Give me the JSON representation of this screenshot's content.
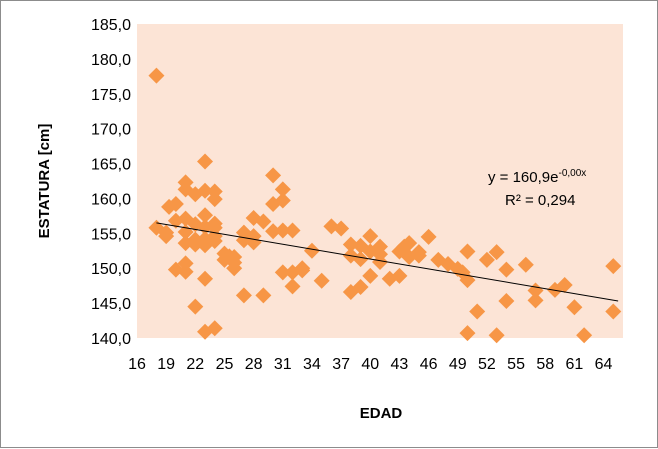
{
  "chart_data": {
    "type": "scatter",
    "xlabel": "EDAD",
    "ylabel": "ESTATURA [cm]",
    "xlim": [
      16,
      66
    ],
    "ylim": [
      140,
      185
    ],
    "x_ticks": [
      "16",
      "19",
      "22",
      "25",
      "28",
      "31",
      "34",
      "37",
      "40",
      "43",
      "46",
      "49",
      "52",
      "55",
      "58",
      "61",
      "64"
    ],
    "y_ticks": [
      "140,0",
      "145,0",
      "150,0",
      "155,0",
      "160,0",
      "165,0",
      "170,0",
      "175,0",
      "180,0",
      "185,0"
    ],
    "grid": false,
    "legend": "none",
    "plot_background": "#fce4d6",
    "marker_color": "#f79646",
    "trend_color": "#000000",
    "equation": {
      "prefix": "y = 160,9e",
      "exponent": "-0,00x"
    },
    "r_squared": "R² = 0,294",
    "trendline": {
      "x": [
        18,
        65.5
      ],
      "y": [
        156.5,
        145.3
      ]
    },
    "points": [
      [
        18,
        177.6
      ],
      [
        18,
        155.8
      ],
      [
        19,
        155.1
      ],
      [
        19,
        154.6
      ],
      [
        19.3,
        158.8
      ],
      [
        20,
        159.2
      ],
      [
        20,
        156.8
      ],
      [
        20,
        149.8
      ],
      [
        21,
        162.3
      ],
      [
        21,
        161.3
      ],
      [
        21,
        157.1
      ],
      [
        21,
        155.2
      ],
      [
        21,
        153.6
      ],
      [
        21,
        150.7
      ],
      [
        21,
        149.5
      ],
      [
        22,
        160.6
      ],
      [
        22,
        156.3
      ],
      [
        22,
        154.1
      ],
      [
        22,
        153.4
      ],
      [
        22,
        144.5
      ],
      [
        23,
        165.3
      ],
      [
        23,
        161.1
      ],
      [
        23,
        157.6
      ],
      [
        23,
        155.9
      ],
      [
        23,
        154.2
      ],
      [
        23,
        153.3
      ],
      [
        23,
        148.5
      ],
      [
        23,
        140.9
      ],
      [
        24,
        161.0
      ],
      [
        24,
        159.9
      ],
      [
        24,
        156.4
      ],
      [
        24,
        155.8
      ],
      [
        24,
        154.6
      ],
      [
        24,
        153.9
      ],
      [
        24,
        141.4
      ],
      [
        25,
        152.1
      ],
      [
        25,
        151.2
      ],
      [
        25.5,
        151.7
      ],
      [
        26,
        150.8
      ],
      [
        26,
        150.0
      ],
      [
        26,
        151.6
      ],
      [
        27,
        155.1
      ],
      [
        27,
        154.0
      ],
      [
        27,
        146.1
      ],
      [
        28,
        157.2
      ],
      [
        28,
        154.6
      ],
      [
        28,
        153.7
      ],
      [
        29,
        156.7
      ],
      [
        29,
        146.1
      ],
      [
        30,
        163.3
      ],
      [
        30,
        159.2
      ],
      [
        30,
        155.3
      ],
      [
        31,
        161.3
      ],
      [
        31,
        159.7
      ],
      [
        31,
        155.4
      ],
      [
        31,
        149.4
      ],
      [
        32,
        155.4
      ],
      [
        32,
        149.4
      ],
      [
        32,
        147.4
      ],
      [
        33,
        150.0
      ],
      [
        33,
        149.7
      ],
      [
        34,
        152.5
      ],
      [
        35,
        148.2
      ],
      [
        36,
        156.0
      ],
      [
        37,
        155.7
      ],
      [
        38,
        153.4
      ],
      [
        38,
        151.8
      ],
      [
        38,
        146.6
      ],
      [
        39,
        153.2
      ],
      [
        39,
        151.3
      ],
      [
        39,
        147.3
      ],
      [
        40,
        154.6
      ],
      [
        40,
        152.4
      ],
      [
        40,
        148.9
      ],
      [
        41,
        153.1
      ],
      [
        41,
        152.0
      ],
      [
        41,
        150.9
      ],
      [
        42,
        148.5
      ],
      [
        43,
        152.4
      ],
      [
        43,
        148.9
      ],
      [
        43.5,
        153.1
      ],
      [
        44,
        153.6
      ],
      [
        44,
        151.6
      ],
      [
        45,
        152.3
      ],
      [
        45,
        151.8
      ],
      [
        46,
        154.5
      ],
      [
        47,
        151.2
      ],
      [
        48,
        150.6
      ],
      [
        49,
        149.9
      ],
      [
        49.5,
        149.4
      ],
      [
        50,
        152.4
      ],
      [
        50,
        148.3
      ],
      [
        50,
        140.7
      ],
      [
        51,
        143.8
      ],
      [
        52,
        151.2
      ],
      [
        53,
        152.3
      ],
      [
        53,
        140.4
      ],
      [
        54,
        149.8
      ],
      [
        54,
        145.3
      ],
      [
        56,
        150.5
      ],
      [
        57,
        146.8
      ],
      [
        57,
        145.4
      ],
      [
        59,
        146.9
      ],
      [
        60,
        147.6
      ],
      [
        61,
        144.4
      ],
      [
        62,
        140.4
      ],
      [
        65,
        150.3
      ],
      [
        65,
        143.8
      ]
    ]
  }
}
